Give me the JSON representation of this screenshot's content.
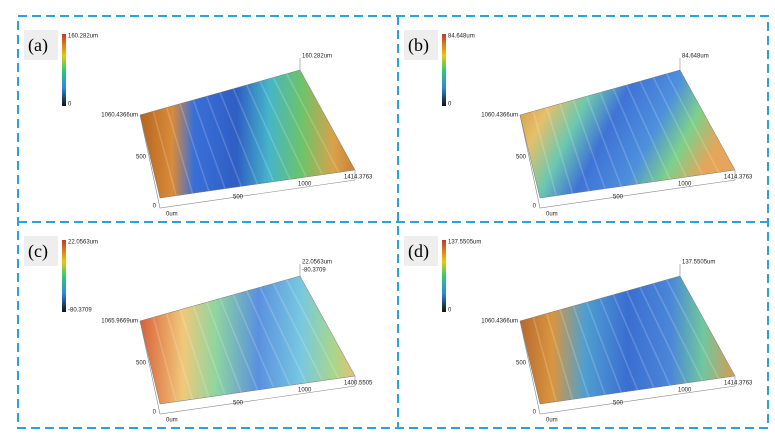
{
  "panels": [
    {
      "label": "(a)",
      "colorbar": [
        "160.282um",
        "0"
      ],
      "z_labels": [
        "160.282um"
      ],
      "y_extent": "1060.4366um",
      "y_ticks": [
        "500",
        "0"
      ],
      "x_ticks": [
        "0um",
        "500",
        "1000"
      ],
      "x_extent": "1414.3763"
    },
    {
      "label": "(b)",
      "colorbar": [
        "84.648um",
        "0"
      ],
      "z_labels": [
        "84.648um"
      ],
      "y_extent": "1060.4366um",
      "y_ticks": [
        "500",
        "0"
      ],
      "x_ticks": [
        "0um",
        "500",
        "1000"
      ],
      "x_extent": "1414.3763"
    },
    {
      "label": "(c)",
      "colorbar": [
        "22.0563um",
        "-80.3709"
      ],
      "z_labels": [
        "22.0563um",
        "-80.3709"
      ],
      "y_extent": "1065.9669um",
      "y_ticks": [
        "500",
        "0"
      ],
      "x_ticks": [
        "0um",
        "500",
        "1000"
      ],
      "x_extent": "1400.5505"
    },
    {
      "label": "(d)",
      "colorbar": [
        "137.5505um",
        "0"
      ],
      "z_labels": [
        "137.5505um"
      ],
      "y_extent": "1060.4366um",
      "y_ticks": [
        "500",
        "0"
      ],
      "x_ticks": [
        "0um",
        "500",
        "1000"
      ],
      "x_extent": "1414.3763"
    }
  ]
}
